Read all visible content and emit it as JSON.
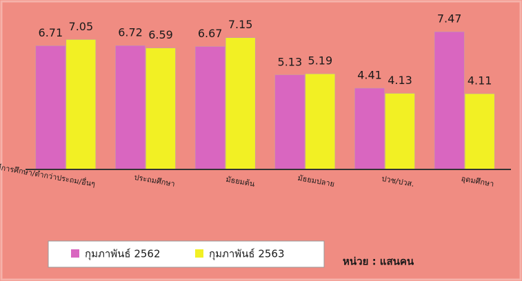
{
  "chart_data": {
    "type": "bar",
    "categories": [
      "ไม่มีการศึกษา/ต่ำกว่าประถม/อื่นๆ",
      "ประถมศึกษา",
      "มัธยมต้น",
      "มัธยมปลาย",
      "ปวช/ปวส.",
      "อุดมศึกษา"
    ],
    "series": [
      {
        "name": "กุมภาพันธ์ 2562",
        "color": "#d966c0",
        "values": [
          6.71,
          6.72,
          6.67,
          5.13,
          4.41,
          7.47
        ]
      },
      {
        "name": "กุมภาพันธ์ 2563",
        "color": "#f2f024",
        "values": [
          7.05,
          6.59,
          7.15,
          5.19,
          4.13,
          4.11
        ]
      }
    ],
    "ylim": [
      0,
      8
    ],
    "legend": "bottom",
    "annotation": "หน่วย : แสนคน"
  }
}
